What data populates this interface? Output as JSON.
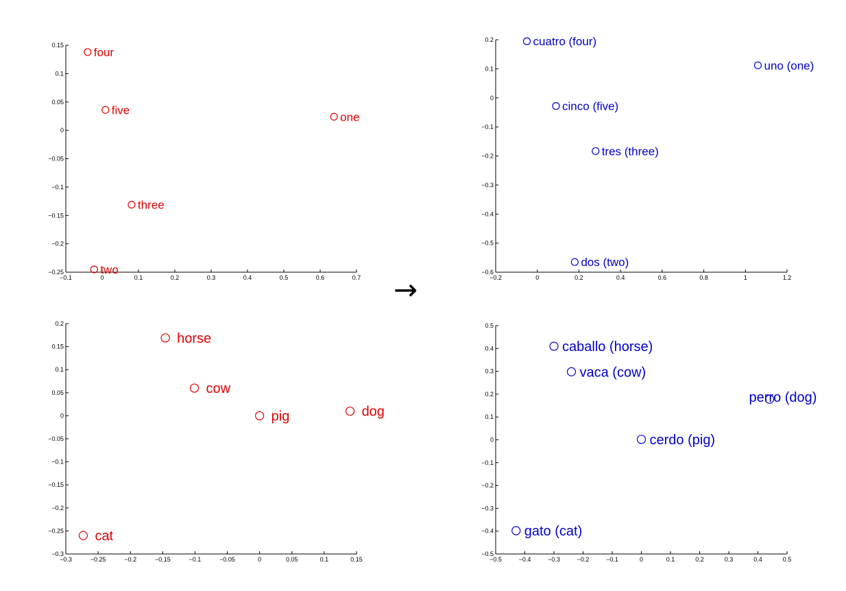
{
  "arrow_glyph": "→",
  "chart_data": [
    {
      "type": "scatter",
      "title": "",
      "xlabel": "",
      "ylabel": "",
      "xlim": [
        -0.1,
        0.7
      ],
      "ylim": [
        -0.25,
        0.15
      ],
      "xticks": [
        -0.1,
        0,
        0.1,
        0.2,
        0.3,
        0.4,
        0.5,
        0.6,
        0.7
      ],
      "xtick_labels": [
        "−0.1",
        "0",
        "0.1",
        "0.2",
        "0.3",
        "0.4",
        "0.5",
        "0.6",
        "0.7"
      ],
      "yticks": [
        -0.25,
        -0.2,
        -0.15,
        -0.1,
        -0.05,
        0,
        0.05,
        0.1,
        0.15
      ],
      "ytick_labels": [
        "−0.25",
        "−0.2",
        "−0.15",
        "−0.1",
        "−0.05",
        "0",
        "0.05",
        "0.1",
        "0.15"
      ],
      "grid": false,
      "color": "#e00000",
      "points": [
        {
          "label": "four",
          "x": -0.04,
          "y": 0.138
        },
        {
          "label": "five",
          "x": 0.009,
          "y": 0.036
        },
        {
          "label": "one",
          "x": 0.638,
          "y": 0.024
        },
        {
          "label": "three",
          "x": 0.081,
          "y": -0.131
        },
        {
          "label": "two",
          "x": -0.022,
          "y": -0.245
        }
      ]
    },
    {
      "type": "scatter",
      "title": "",
      "xlabel": "",
      "ylabel": "",
      "xlim": [
        -0.2,
        1.2
      ],
      "ylim": [
        -0.6,
        0.2
      ],
      "xticks": [
        -0.2,
        0,
        0.2,
        0.4,
        0.6,
        0.8,
        1,
        1.2
      ],
      "xtick_labels": [
        "−0.2",
        "0",
        "0.2",
        "0.4",
        "0.6",
        "0.8",
        "1",
        "1.2"
      ],
      "yticks": [
        -0.6,
        -0.5,
        -0.4,
        -0.3,
        -0.2,
        -0.1,
        0,
        0.1,
        0.2
      ],
      "ytick_labels": [
        "−0.6",
        "−0.5",
        "−0.4",
        "−0.3",
        "−0.2",
        "−0.1",
        "0",
        "0.1",
        "0.2"
      ],
      "grid": false,
      "color": "#0000cc",
      "points": [
        {
          "label": "cuatro (four)",
          "x": -0.05,
          "y": 0.195
        },
        {
          "label": "uno (one)",
          "x": 1.06,
          "y": 0.112
        },
        {
          "label": "cinco (five)",
          "x": 0.09,
          "y": -0.028
        },
        {
          "label": "tres (three)",
          "x": 0.28,
          "y": -0.183
        },
        {
          "label": "dos (two)",
          "x": 0.18,
          "y": -0.565
        }
      ]
    },
    {
      "type": "scatter",
      "title": "",
      "xlabel": "",
      "ylabel": "",
      "xlim": [
        -0.3,
        0.15
      ],
      "ylim": [
        -0.3,
        0.2
      ],
      "xticks": [
        -0.3,
        -0.25,
        -0.2,
        -0.15,
        -0.1,
        -0.05,
        0,
        0.05,
        0.1,
        0.15
      ],
      "xtick_labels": [
        "−0.3",
        "−0.25",
        "−0.2",
        "−0.15",
        "−0.1",
        "−0.05",
        "0",
        "0.05",
        "0.1",
        "0.15"
      ],
      "yticks": [
        -0.3,
        -0.25,
        -0.2,
        -0.15,
        -0.1,
        -0.05,
        0,
        0.05,
        0.1,
        0.15,
        0.2
      ],
      "ytick_labels": [
        "−0.3",
        "−0.25",
        "−0.2",
        "−0.15",
        "−0.1",
        "−0.05",
        "0",
        "0.05",
        "0.1",
        "0.15",
        "0.2"
      ],
      "grid": false,
      "color": "#e00000",
      "points": [
        {
          "label": "horse",
          "x": -0.146,
          "y": 0.169
        },
        {
          "label": "cow",
          "x": -0.101,
          "y": 0.06
        },
        {
          "label": "pig",
          "x": 0.0,
          "y": 0.0
        },
        {
          "label": "dog",
          "x": 0.14,
          "y": 0.01
        },
        {
          "label": "cat",
          "x": -0.273,
          "y": -0.26
        }
      ]
    },
    {
      "type": "scatter",
      "title": "",
      "xlabel": "",
      "ylabel": "",
      "xlim": [
        -0.5,
        0.5
      ],
      "ylim": [
        -0.5,
        0.5
      ],
      "xticks": [
        -0.5,
        -0.4,
        -0.3,
        -0.2,
        -0.1,
        0,
        0.1,
        0.2,
        0.3,
        0.4,
        0.5
      ],
      "xtick_labels": [
        "−0.5",
        "−0.4",
        "−0.3",
        "−0.2",
        "−0.1",
        "0",
        "0.1",
        "0.2",
        "0.3",
        "0.4",
        "0.5"
      ],
      "yticks": [
        -0.5,
        -0.4,
        -0.3,
        -0.2,
        -0.1,
        0,
        0.1,
        0.2,
        0.3,
        0.4,
        0.5
      ],
      "ytick_labels": [
        "−0.5",
        "−0.4",
        "−0.3",
        "−0.2",
        "−0.1",
        "0",
        "0.1",
        "0.2",
        "0.3",
        "0.4",
        "0.5"
      ],
      "grid": false,
      "color": "#0000cc",
      "points": [
        {
          "label": "caballo (horse)",
          "x": -0.3,
          "y": 0.41
        },
        {
          "label": "vaca (cow)",
          "x": -0.24,
          "y": 0.298
        },
        {
          "label": "perro (dog)",
          "x": 0.44,
          "y": 0.178
        },
        {
          "label": "cerdo (pig)",
          "x": 0.0,
          "y": 0.002
        },
        {
          "label": "gato (cat)",
          "x": -0.43,
          "y": -0.398
        }
      ]
    }
  ]
}
